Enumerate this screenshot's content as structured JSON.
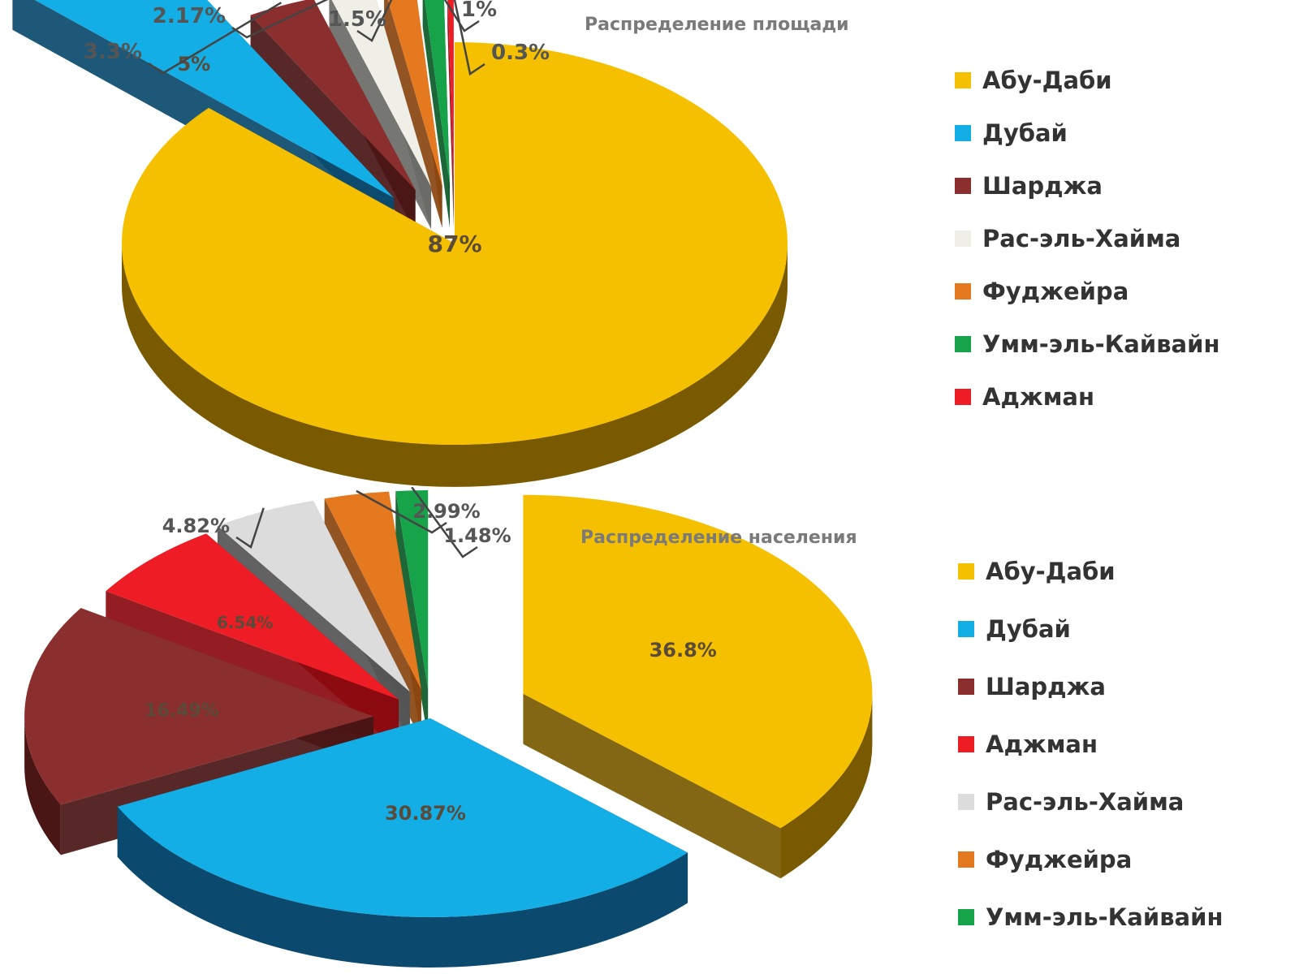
{
  "chart_data": [
    {
      "type": "pie",
      "title": "Распределение площади",
      "legend_position": "right",
      "three_d": true,
      "exploded": true,
      "categories": [
        "Абу-Даби",
        "Дубай",
        "Шарджа",
        "Рас-эль-Хайма",
        "Фуджейра",
        "Умм-эль-Кайвайн",
        "Аджман"
      ],
      "values": [
        87,
        5,
        3.3,
        2.17,
        1.5,
        1,
        0.3
      ],
      "labels": [
        "87%",
        "5%",
        "3.3%",
        "2.17%",
        "1.5%",
        "1%",
        "0.3%"
      ],
      "colors": [
        "#f5c000",
        "#14aee6",
        "#8b2e2e",
        "#efefe8",
        "#e5791f",
        "#16a34a",
        "#ee1c25"
      ],
      "side_colors": [
        "#7a5a00",
        "#0b4a6e",
        "#4a1515",
        "#6a6a66",
        "#8a4510",
        "#0b5a28",
        "#8a0a10"
      ]
    },
    {
      "type": "pie",
      "title": "Распределение населения",
      "legend_position": "right",
      "three_d": true,
      "exploded": true,
      "categories": [
        "Абу-Даби",
        "Дубай",
        "Шарджа",
        "Аджман",
        "Рас-эль-Хайма",
        "Фуджейра",
        "Умм-эль-Кайвайн"
      ],
      "values": [
        36.8,
        30.87,
        16.49,
        6.54,
        4.82,
        2.99,
        1.48
      ],
      "labels": [
        "36.8%",
        "30.87%",
        "16.49%",
        "6.54%",
        "4.82%",
        "2.99%",
        "1.48%"
      ],
      "colors": [
        "#f5c000",
        "#14aee6",
        "#8b2e2e",
        "#ee1c25",
        "#dcdcdc",
        "#e5791f",
        "#16a34a"
      ],
      "side_colors": [
        "#7a5a00",
        "#0b4a6e",
        "#4a1515",
        "#8a0a10",
        "#555555",
        "#8a4510",
        "#0b5a28"
      ]
    }
  ]
}
